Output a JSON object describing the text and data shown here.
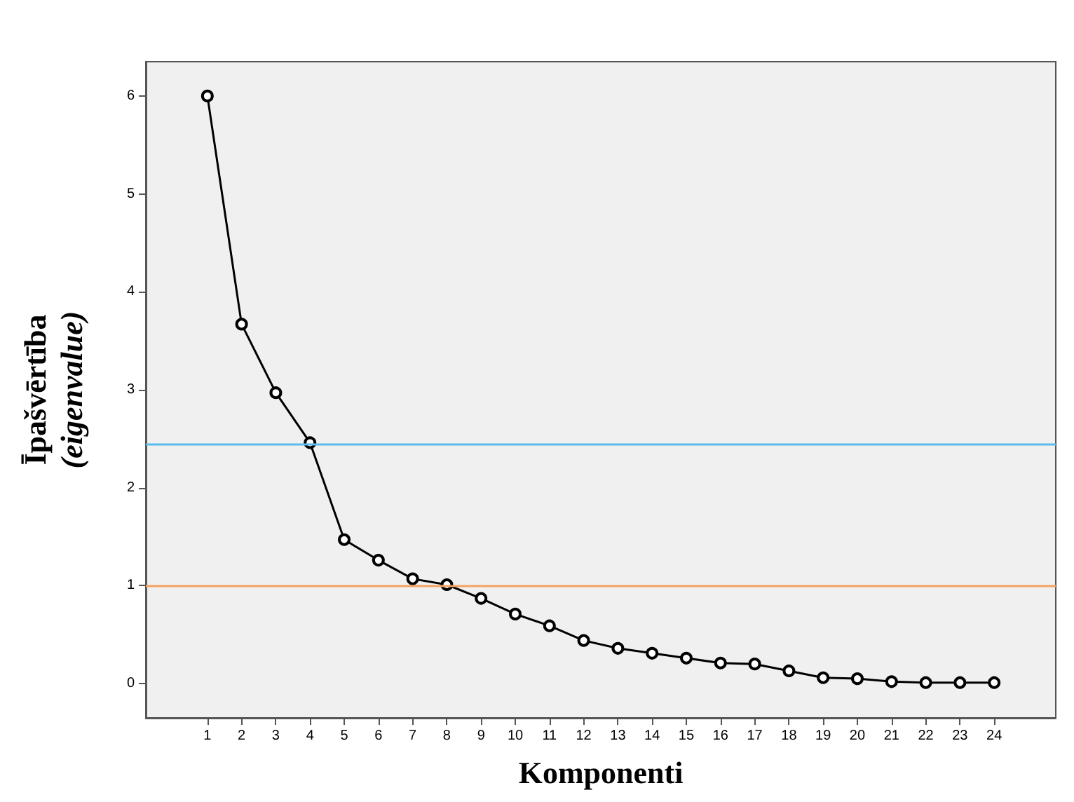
{
  "chart_data": {
    "type": "line",
    "xlabel": "Komponenti",
    "ylabel": "Īpašvērtība\n(eigenvalue)",
    "x": [
      1,
      2,
      3,
      4,
      5,
      6,
      7,
      8,
      9,
      10,
      11,
      12,
      13,
      14,
      15,
      16,
      17,
      18,
      19,
      20,
      21,
      22,
      23,
      24
    ],
    "series": [
      {
        "color": "#000000",
        "values": [
          6.0,
          3.67,
          2.97,
          2.46,
          1.47,
          1.26,
          1.07,
          1.01,
          0.87,
          0.71,
          0.59,
          0.44,
          0.36,
          0.31,
          0.26,
          0.21,
          0.2,
          0.13,
          0.06,
          0.05,
          0.02,
          0.01,
          0.01,
          0.01
        ]
      }
    ],
    "xlim": [
      -0.8,
      25.8
    ],
    "xticks": [
      1,
      2,
      3,
      4,
      5,
      6,
      7,
      8,
      9,
      10,
      11,
      12,
      13,
      14,
      15,
      16,
      17,
      18,
      19,
      20,
      21,
      22,
      23,
      24
    ],
    "ylim": [
      -0.35,
      6.35
    ],
    "yticks": [
      0,
      1,
      2,
      3,
      4,
      5,
      6
    ],
    "ref_lines": [
      {
        "axis": "y",
        "value": 2.44,
        "color": "#5bbcea"
      },
      {
        "axis": "y",
        "value": 1.0,
        "color": "#f5a15e"
      }
    ],
    "marker": "circle",
    "line_style": "solid"
  }
}
